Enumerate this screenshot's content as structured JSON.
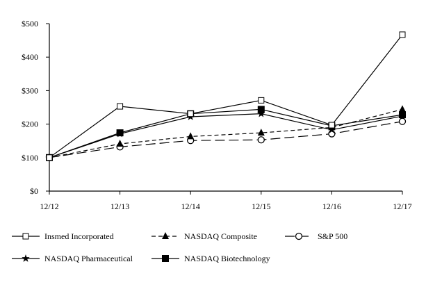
{
  "chart_data": {
    "type": "line",
    "categories": [
      "12/12",
      "12/13",
      "12/14",
      "12/15",
      "12/16",
      "12/17"
    ],
    "ylim": [
      0,
      500
    ],
    "yticks": [
      0,
      100,
      200,
      300,
      400,
      500
    ],
    "ytick_labels": [
      "$0",
      "$100",
      "$200",
      "$300",
      "$400",
      "$500"
    ],
    "grid": false,
    "legend_placement": "bottom",
    "series": [
      {
        "name": "Insmed Incorporated",
        "values": [
          100,
          253,
          231,
          271,
          197,
          467
        ],
        "line": "solid",
        "marker": "open-square"
      },
      {
        "name": "NASDAQ Composite",
        "values": [
          100,
          141,
          163,
          174,
          190,
          244
        ],
        "line": "short-dash",
        "marker": "filled-triangle"
      },
      {
        "name": "S&P 500",
        "values": [
          100,
          132,
          151,
          153,
          171,
          208
        ],
        "line": "long-dash",
        "marker": "open-circle"
      },
      {
        "name": "NASDAQ Pharmaceutical",
        "values": [
          100,
          171,
          222,
          231,
          183,
          224
        ],
        "line": "solid",
        "marker": "star"
      },
      {
        "name": "NASDAQ Biotechnology",
        "values": [
          100,
          174,
          231,
          244,
          195,
          228
        ],
        "line": "solid",
        "marker": "filled-square"
      }
    ]
  }
}
